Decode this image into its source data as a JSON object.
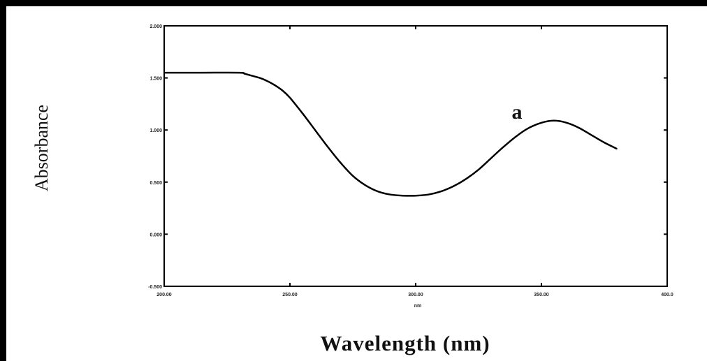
{
  "chart_data": {
    "type": "line",
    "title": "",
    "xlabel": "Wavelength (nm)",
    "ylabel": "Absorbance",
    "annotation": "a",
    "xlim": [
      200,
      400
    ],
    "ylim": [
      -0.5,
      2.0
    ],
    "x_ticks": [
      {
        "value": 200,
        "label": "200.00"
      },
      {
        "value": 250,
        "label": "250.00"
      },
      {
        "value": 300,
        "label": "300.00"
      },
      {
        "value": 350,
        "label": "350.00"
      },
      {
        "value": 400,
        "label": "400.0"
      }
    ],
    "x_unit_mark": "nm",
    "y_ticks": [
      {
        "value": 2.0,
        "label": "2.000"
      },
      {
        "value": 1.5,
        "label": "1.500"
      },
      {
        "value": 1.0,
        "label": "1.000"
      },
      {
        "value": 0.5,
        "label": "0.500"
      },
      {
        "value": 0.0,
        "label": "0.000"
      },
      {
        "value": -0.5,
        "label": "-0.500"
      }
    ],
    "grid": false,
    "series": [
      {
        "color": "#000000",
        "points": [
          [
            200,
            1.55
          ],
          [
            215,
            1.55
          ],
          [
            230,
            1.55
          ],
          [
            232,
            1.54
          ],
          [
            235,
            1.52
          ],
          [
            238,
            1.5
          ],
          [
            241,
            1.47
          ],
          [
            244,
            1.43
          ],
          [
            247,
            1.38
          ],
          [
            250,
            1.31
          ],
          [
            255,
            1.16
          ],
          [
            260,
            1.0
          ],
          [
            265,
            0.84
          ],
          [
            270,
            0.69
          ],
          [
            275,
            0.56
          ],
          [
            280,
            0.47
          ],
          [
            285,
            0.41
          ],
          [
            290,
            0.38
          ],
          [
            295,
            0.37
          ],
          [
            300,
            0.37
          ],
          [
            305,
            0.38
          ],
          [
            310,
            0.41
          ],
          [
            315,
            0.46
          ],
          [
            320,
            0.53
          ],
          [
            325,
            0.62
          ],
          [
            330,
            0.73
          ],
          [
            335,
            0.84
          ],
          [
            340,
            0.94
          ],
          [
            345,
            1.02
          ],
          [
            350,
            1.07
          ],
          [
            355,
            1.09
          ],
          [
            360,
            1.07
          ],
          [
            365,
            1.02
          ],
          [
            370,
            0.95
          ],
          [
            375,
            0.88
          ],
          [
            380,
            0.82
          ]
        ]
      }
    ]
  }
}
